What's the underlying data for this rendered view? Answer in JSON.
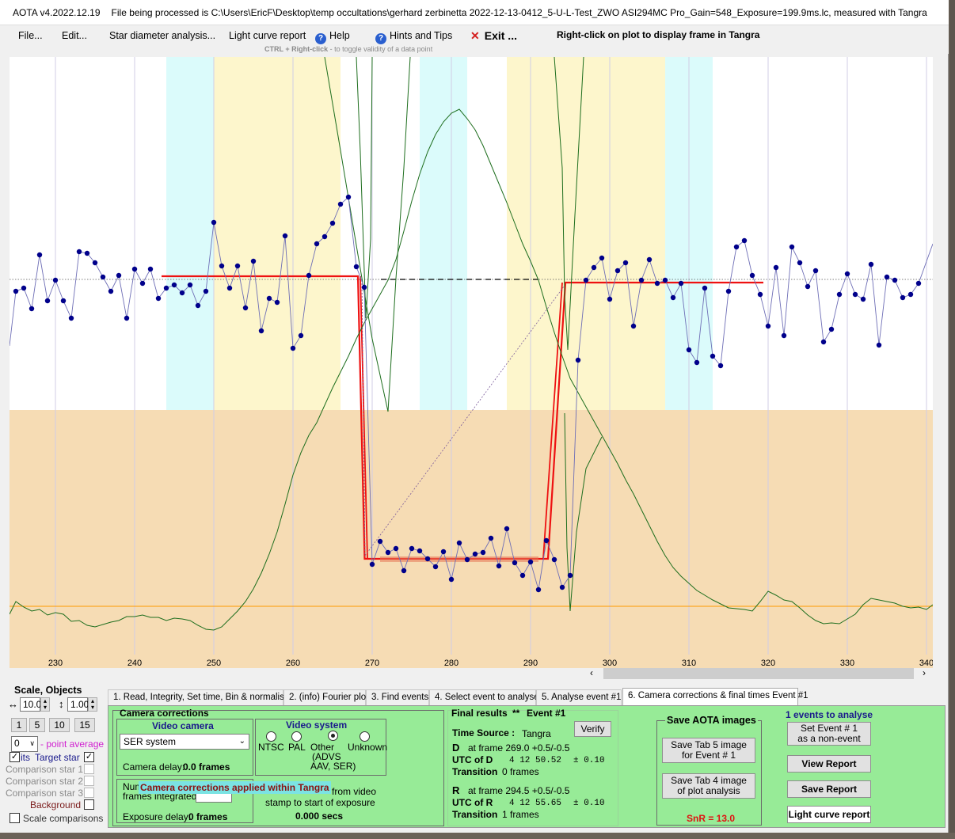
{
  "window": {
    "app_title": "AOTA v4.2022.12.19",
    "file_text": "File being processed is C:\\Users\\EricF\\Desktop\\temp occultations\\gerhard zerbinetta 2022-12-13-0412_5-U-L-Test_ZWO ASI294MC Pro_Gain=548_Exposure=199.9ms.lc, measured with Tangra"
  },
  "menu": {
    "file": "File...",
    "edit": "Edit...",
    "star_diameter": "Star diameter analysis...",
    "light_curve_report": "Light curve report",
    "help": "Help",
    "hints": "Hints and Tips",
    "exit": "Exit ...",
    "right_click_hint": "Right-click on plot to display frame in Tangra",
    "ctrl_hint_bold": "CTRL + Right-click",
    "ctrl_hint_rest": " -  to toggle validity of a data point"
  },
  "chart_data": {
    "type": "line",
    "x_ticks": [
      230,
      240,
      250,
      260,
      270,
      280,
      290,
      300,
      310,
      320,
      330,
      340
    ],
    "xlim": [
      224.2,
      340.8
    ],
    "event": {
      "d_frame": 269.0,
      "r_frame": 294.5
    }
  },
  "left_panel": {
    "scale_label": "Scale,  Objects",
    "x_scale": "10.0",
    "y_scale": "1.00",
    "scale_buttons": [
      "1",
      "5",
      "10",
      "15"
    ],
    "point_average_value": "0",
    "point_average_label": "- point average",
    "target_prefix": "its",
    "target_star": "Target star",
    "comparison_1": "Comparison star 1",
    "comparison_2": "Comparison star 2",
    "comparison_3": "Comparison star 3",
    "background": "Background",
    "scale_comparisons": "Scale comparisons"
  },
  "tabs": [
    "1.  Read, Integrity, Set time, Bin & normalise",
    "2. (info)  Fourier plot",
    "3. Find events",
    "4. Select event to analyse",
    "5. Analyse event #1",
    "6. Camera corrections & final times Event #1"
  ],
  "camera": {
    "section_title": "Camera corrections",
    "video_camera_title": "Video camera",
    "camera_select": "SER system",
    "camera_delay_label": "Camera delay:",
    "camera_delay_value": "0.0 frames",
    "video_system_title": "Video system",
    "ntsc": "NTSC",
    "pal": "PAL",
    "other": "Other",
    "other_sub1": "(ADVS",
    "other_sub2": "AAV, SER)",
    "unknown": "Unknown",
    "num_label": "Num",
    "frames_integrated": "frames integrated",
    "from_video": "from video",
    "stamp_label": "stamp to start of exposure",
    "stamp_secs": "0.000 secs",
    "exposure_delay_label": "Exposure delay:",
    "exposure_delay_value": "0 frames",
    "tangra_message": "Camera corrections applied within Tangra"
  },
  "final": {
    "title": "Final results",
    "stars": "**",
    "event_label": "Event #1",
    "time_source_label": "Time Source :",
    "time_source_value": "Tangra",
    "verify": "Verify",
    "d_label": "D",
    "d_frame_text": "at frame 269.0  +0.5/-0.5",
    "utc_d_label": "UTC of D",
    "utc_d_value": "4 12 50.52",
    "utc_d_err": "± 0.10",
    "transition_label": "Transition",
    "transition_d": "0 frames",
    "r_label": "R",
    "r_frame_text": "at frame 294.5  +0.5/-0.5",
    "utc_r_label": "UTC of R",
    "utc_r_value": "4 12 55.65",
    "utc_r_err": "± 0.10",
    "transition_r": "1 frames"
  },
  "save": {
    "title": "Save AOTA images",
    "tab5_line1": "Save Tab 5 image",
    "tab5_line2": "for Event # 1",
    "tab4_line1": "Save Tab 4 image",
    "tab4_line2": "of plot analysis",
    "snr": "SnR = 13.0"
  },
  "events": {
    "title": "1  events to analyse",
    "set_event_line1": "Set Event # 1",
    "set_event_line2": "as a non-event",
    "view_report": "View Report",
    "save_report": "Save Report",
    "light_curve_report": "Light curve report"
  },
  "colors": {
    "band_cyan": "#dbfbfb",
    "band_yellow": "#fdf6cc",
    "lower_band": "#f6dcb4",
    "data_blue": "#00008b",
    "fit_red": "#ee1111",
    "green_curve": "#1e6e1e",
    "panel_green": "#97eb97"
  }
}
